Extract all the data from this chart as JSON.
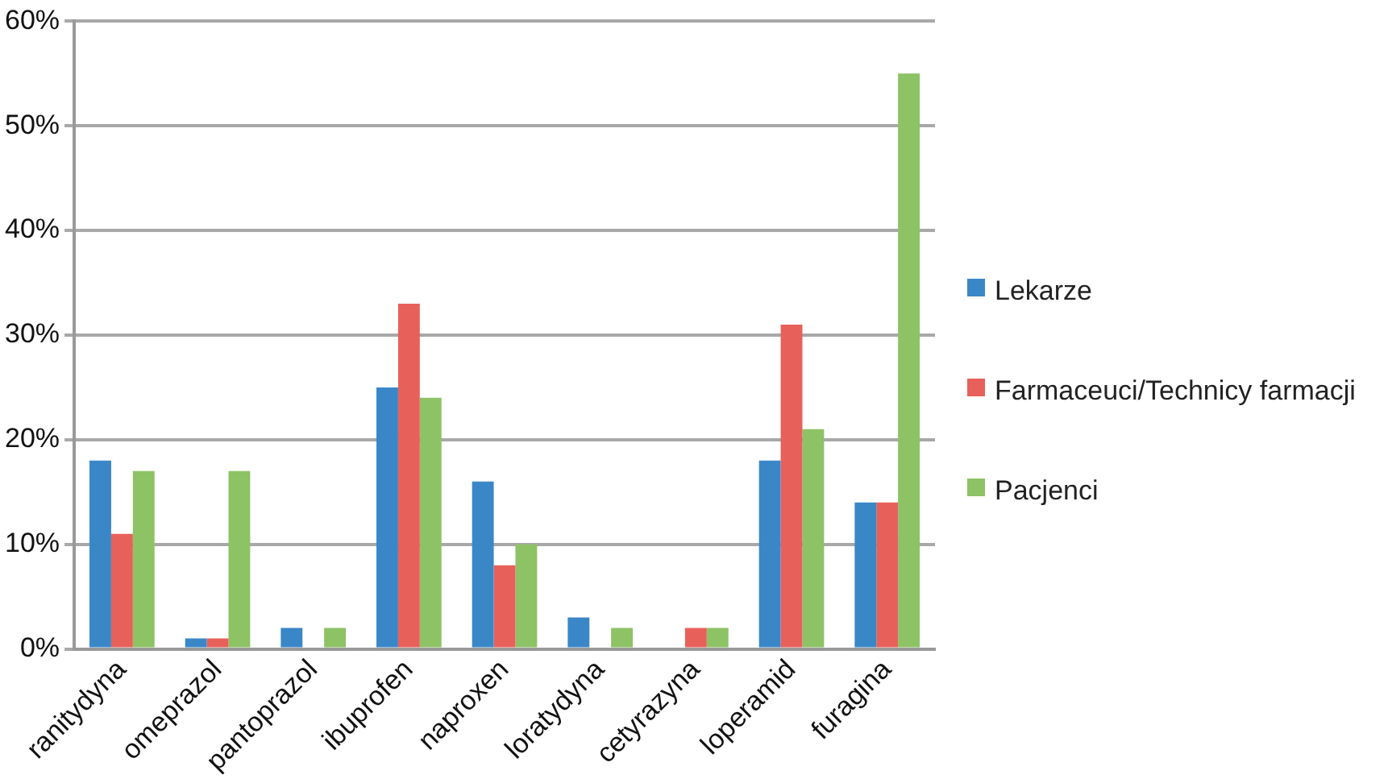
{
  "chart_data": {
    "type": "bar",
    "categories": [
      "ranitydyna",
      "omeprazol",
      "pantoprazol",
      "ibuprofen",
      "naproxen",
      "loratydyna",
      "cetyrazyna",
      "loperamid",
      "furagina"
    ],
    "series": [
      {
        "name": "Lekarze",
        "color": "#3a87c8",
        "values": [
          18,
          1,
          2,
          25,
          16,
          3,
          0,
          18,
          14
        ]
      },
      {
        "name": "Farmaceuci/Technicy farmacji",
        "color": "#e8605a",
        "values": [
          11,
          1,
          0,
          33,
          8,
          0,
          2,
          31,
          14
        ]
      },
      {
        "name": "Pacjenci",
        "color": "#8dc265",
        "values": [
          17,
          17,
          2,
          24,
          10,
          2,
          2,
          21,
          55
        ]
      }
    ],
    "ylim": [
      0,
      60
    ],
    "yticks": [
      {
        "value": 0,
        "label": "0%"
      },
      {
        "value": 10,
        "label": "10%"
      },
      {
        "value": 20,
        "label": "20%"
      },
      {
        "value": 30,
        "label": "30%"
      },
      {
        "value": 40,
        "label": "40%"
      },
      {
        "value": 50,
        "label": "50%"
      },
      {
        "value": 60,
        "label": "60%"
      }
    ],
    "grid": "y",
    "legend": "right"
  }
}
